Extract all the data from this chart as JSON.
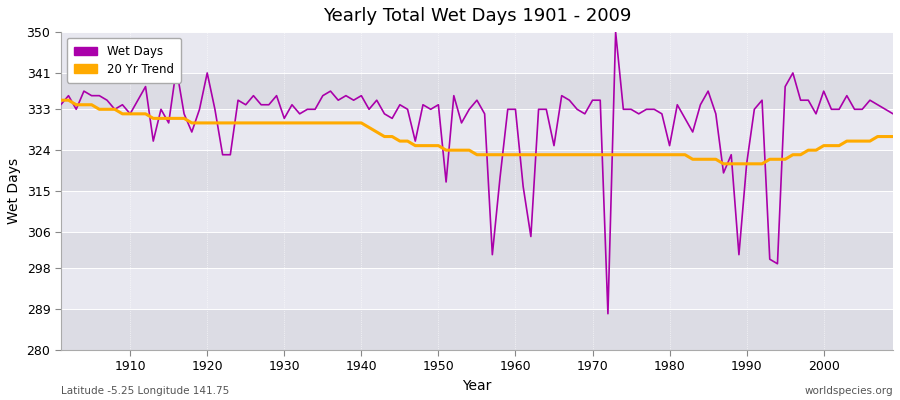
{
  "title": "Yearly Total Wet Days 1901 - 2009",
  "xlabel": "Year",
  "ylabel": "Wet Days",
  "subtitle_left": "Latitude -5.25 Longitude 141.75",
  "subtitle_right": "worldspecies.org",
  "ylim": [
    280,
    350
  ],
  "yticks": [
    280,
    289,
    298,
    306,
    315,
    324,
    333,
    341,
    350
  ],
  "xlim": [
    1901,
    2009
  ],
  "xticks": [
    1910,
    1920,
    1930,
    1940,
    1950,
    1960,
    1970,
    1980,
    1990,
    2000
  ],
  "wet_days_color": "#aa00aa",
  "trend_color": "#ffaa00",
  "fig_bg_color": "#ffffff",
  "plot_bg_color": "#e8e8ec",
  "grid_color": "#ffffff",
  "years": [
    1901,
    1902,
    1903,
    1904,
    1905,
    1906,
    1907,
    1908,
    1909,
    1910,
    1911,
    1912,
    1913,
    1914,
    1915,
    1916,
    1917,
    1918,
    1919,
    1920,
    1921,
    1922,
    1923,
    1924,
    1925,
    1926,
    1927,
    1928,
    1929,
    1930,
    1931,
    1932,
    1933,
    1934,
    1935,
    1936,
    1937,
    1938,
    1939,
    1940,
    1941,
    1942,
    1943,
    1944,
    1945,
    1946,
    1947,
    1948,
    1949,
    1950,
    1951,
    1952,
    1953,
    1954,
    1955,
    1956,
    1957,
    1958,
    1959,
    1960,
    1961,
    1962,
    1963,
    1964,
    1965,
    1966,
    1967,
    1968,
    1969,
    1970,
    1971,
    1972,
    1973,
    1974,
    1975,
    1976,
    1977,
    1978,
    1979,
    1980,
    1981,
    1982,
    1983,
    1984,
    1985,
    1986,
    1987,
    1988,
    1989,
    1990,
    1991,
    1992,
    1993,
    1994,
    1995,
    1996,
    1997,
    1998,
    1999,
    2000,
    2001,
    2002,
    2003,
    2004,
    2005,
    2006,
    2007,
    2008,
    2009
  ],
  "wet_days": [
    334,
    336,
    333,
    337,
    336,
    336,
    335,
    333,
    334,
    332,
    335,
    338,
    326,
    333,
    330,
    342,
    332,
    328,
    333,
    341,
    333,
    323,
    323,
    335,
    334,
    336,
    334,
    334,
    336,
    331,
    334,
    332,
    333,
    333,
    336,
    337,
    335,
    336,
    335,
    336,
    333,
    335,
    332,
    331,
    334,
    333,
    326,
    334,
    333,
    334,
    317,
    336,
    330,
    333,
    335,
    332,
    301,
    318,
    333,
    333,
    316,
    305,
    333,
    333,
    325,
    336,
    335,
    333,
    332,
    335,
    335,
    288,
    350,
    333,
    333,
    332,
    333,
    333,
    332,
    325,
    334,
    331,
    328,
    334,
    337,
    332,
    319,
    323,
    301,
    321,
    333,
    335,
    300,
    299,
    338,
    341,
    335,
    335,
    332,
    337,
    333,
    333,
    336,
    333,
    333,
    335,
    334,
    333,
    332
  ],
  "trend": [
    335,
    335,
    334,
    334,
    334,
    333,
    333,
    333,
    332,
    332,
    332,
    332,
    331,
    331,
    331,
    331,
    331,
    330,
    330,
    330,
    330,
    330,
    330,
    330,
    330,
    330,
    330,
    330,
    330,
    330,
    330,
    330,
    330,
    330,
    330,
    330,
    330,
    330,
    330,
    330,
    329,
    328,
    327,
    327,
    326,
    326,
    325,
    325,
    325,
    325,
    324,
    324,
    324,
    324,
    323,
    323,
    323,
    323,
    323,
    323,
    323,
    323,
    323,
    323,
    323,
    323,
    323,
    323,
    323,
    323,
    323,
    323,
    323,
    323,
    323,
    323,
    323,
    323,
    323,
    323,
    323,
    323,
    322,
    322,
    322,
    322,
    321,
    321,
    321,
    321,
    321,
    321,
    322,
    322,
    322,
    323,
    323,
    324,
    324,
    325,
    325,
    325,
    326,
    326,
    326,
    326,
    327,
    327,
    327
  ]
}
